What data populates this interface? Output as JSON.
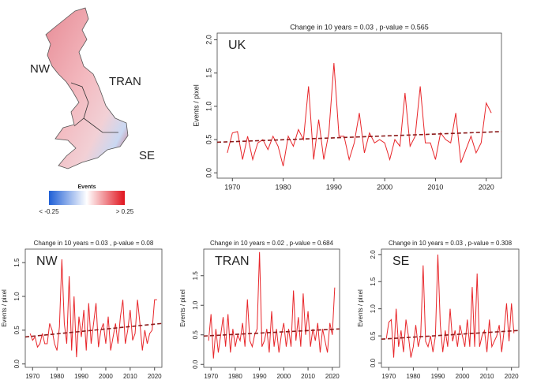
{
  "map": {
    "regions": [
      "NW",
      "TRAN",
      "SE"
    ],
    "legend_title": "Events",
    "legend_min": "< -0.25",
    "legend_max": "> 0.25"
  },
  "chart_data": [
    {
      "type": "line",
      "title": "Change in 10 years = 0.03 , p-value = 0.565",
      "label": "UK",
      "y_label": "Events / pixel",
      "x": [
        1969,
        1970,
        1971,
        1972,
        1973,
        1974,
        1975,
        1976,
        1977,
        1978,
        1979,
        1980,
        1981,
        1982,
        1983,
        1984,
        1985,
        1986,
        1987,
        1988,
        1989,
        1990,
        1991,
        1992,
        1993,
        1994,
        1995,
        1996,
        1997,
        1998,
        1999,
        2000,
        2001,
        2002,
        2003,
        2004,
        2005,
        2006,
        2007,
        2008,
        2009,
        2010,
        2011,
        2012,
        2013,
        2014,
        2015,
        2016,
        2017,
        2018,
        2019,
        2020,
        2021
      ],
      "values": [
        0.3,
        0.6,
        0.62,
        0.2,
        0.55,
        0.2,
        0.45,
        0.5,
        0.35,
        0.55,
        0.4,
        0.1,
        0.55,
        0.4,
        0.65,
        0.5,
        1.3,
        0.2,
        0.8,
        0.2,
        0.6,
        1.65,
        0.55,
        0.55,
        0.2,
        0.45,
        0.9,
        0.3,
        0.6,
        0.45,
        0.5,
        0.45,
        0.2,
        0.5,
        0.4,
        1.2,
        0.4,
        0.55,
        1.3,
        0.45,
        0.45,
        0.2,
        0.6,
        0.5,
        0.45,
        0.9,
        0.15,
        0.35,
        0.55,
        0.3,
        0.45,
        1.05,
        0.9
      ],
      "color": "#e8262a",
      "trend": {
        "x": [
          1967,
          2023
        ],
        "values": [
          0.46,
          0.62
        ],
        "color": "#8b1a1a"
      },
      "xlim": [
        1967,
        2023
      ],
      "xticks": [
        1970,
        1980,
        1990,
        2000,
        2010,
        2020
      ],
      "ylim": [
        -0.08,
        2.1
      ],
      "yticks": [
        {
          "value": 0,
          "label": "0.0"
        },
        0.5,
        {
          "value": 1,
          "label": "1.0"
        },
        1.5,
        {
          "value": 2,
          "label": "2.0"
        }
      ]
    },
    {
      "type": "line",
      "title": "Change in 10 years = 0.03 , p-value = 0.08",
      "label": "NW",
      "y_label": "Events / pixel",
      "x": [
        1969,
        1970,
        1971,
        1972,
        1973,
        1974,
        1975,
        1976,
        1977,
        1978,
        1979,
        1980,
        1981,
        1982,
        1983,
        1984,
        1985,
        1986,
        1987,
        1988,
        1989,
        1990,
        1991,
        1992,
        1993,
        1994,
        1995,
        1996,
        1997,
        1998,
        1999,
        2000,
        2001,
        2002,
        2003,
        2004,
        2005,
        2006,
        2007,
        2008,
        2009,
        2010,
        2011,
        2012,
        2013,
        2014,
        2015,
        2016,
        2017,
        2018,
        2019,
        2020,
        2021
      ],
      "values": [
        0.45,
        0.35,
        0.4,
        0.25,
        0.3,
        0.45,
        0.3,
        0.3,
        0.6,
        0.5,
        0.3,
        0.2,
        0.55,
        1.55,
        0.6,
        0.3,
        1.3,
        0.2,
        1.0,
        0.1,
        0.7,
        0.4,
        0.8,
        0.2,
        0.9,
        0.3,
        0.6,
        0.9,
        0.25,
        0.5,
        0.6,
        0.3,
        0.7,
        0.2,
        0.4,
        0.6,
        0.3,
        0.7,
        0.95,
        0.3,
        0.5,
        0.8,
        0.35,
        0.45,
        0.95,
        0.6,
        0.2,
        0.5,
        0.3,
        0.45,
        0.5,
        0.95,
        0.95
      ],
      "color": "#e8262a",
      "trend": {
        "x": [
          1967,
          2023
        ],
        "values": [
          0.4,
          0.6
        ],
        "color": "#8b1a1a"
      },
      "xlim": [
        1967,
        2023
      ],
      "xticks": [
        1970,
        1980,
        1990,
        2000,
        2010,
        2020
      ],
      "ylim": [
        -0.05,
        1.7
      ],
      "yticks": [
        {
          "value": 0,
          "label": "0.0"
        },
        0.5,
        {
          "value": 1,
          "label": "1.0"
        },
        1.5
      ]
    },
    {
      "type": "line",
      "title": "Change in 10 years = 0.02 , p-value = 0.684",
      "label": "TRAN",
      "y_label": "Events / pixel",
      "x": [
        1969,
        1970,
        1971,
        1972,
        1973,
        1974,
        1975,
        1976,
        1977,
        1978,
        1979,
        1980,
        1981,
        1982,
        1983,
        1984,
        1985,
        1986,
        1987,
        1988,
        1989,
        1990,
        1991,
        1992,
        1993,
        1994,
        1995,
        1996,
        1997,
        1998,
        1999,
        2000,
        2001,
        2002,
        2003,
        2004,
        2005,
        2006,
        2007,
        2008,
        2009,
        2010,
        2011,
        2012,
        2013,
        2014,
        2015,
        2016,
        2017,
        2018,
        2019,
        2020,
        2021
      ],
      "values": [
        0.4,
        0.85,
        0.1,
        0.6,
        0.2,
        0.5,
        0.8,
        0.3,
        0.85,
        0.2,
        0.6,
        0.3,
        0.5,
        0.4,
        0.7,
        0.3,
        1.1,
        0.4,
        0.3,
        0.5,
        0.6,
        1.9,
        0.3,
        0.4,
        0.6,
        0.2,
        0.9,
        0.3,
        0.6,
        0.2,
        0.5,
        0.7,
        0.3,
        0.6,
        0.3,
        1.25,
        0.4,
        0.8,
        0.3,
        1.2,
        0.5,
        0.9,
        0.3,
        0.6,
        0.4,
        0.7,
        0.2,
        0.6,
        0.4,
        0.2,
        0.7,
        0.5,
        1.3
      ],
      "color": "#e8262a",
      "trend": {
        "x": [
          1967,
          2023
        ],
        "values": [
          0.48,
          0.6
        ],
        "color": "#8b1a1a"
      },
      "xlim": [
        1967,
        2023
      ],
      "xticks": [
        1970,
        1980,
        1990,
        2000,
        2010,
        2020
      ],
      "ylim": [
        -0.05,
        1.95
      ],
      "yticks": [
        {
          "value": 0,
          "label": "0.0"
        },
        0.5,
        {
          "value": 1,
          "label": "1.0"
        },
        1.5
      ]
    },
    {
      "type": "line",
      "title": "Change in 10 years = 0.03 , p-value = 0.308",
      "label": "SE",
      "y_label": "Events / pixel",
      "x": [
        1969,
        1970,
        1971,
        1972,
        1973,
        1974,
        1975,
        1976,
        1977,
        1978,
        1979,
        1980,
        1981,
        1982,
        1983,
        1984,
        1985,
        1986,
        1987,
        1988,
        1989,
        1990,
        1991,
        1992,
        1993,
        1994,
        1995,
        1996,
        1997,
        1998,
        1999,
        2000,
        2001,
        2002,
        2003,
        2004,
        2005,
        2006,
        2007,
        2008,
        2009,
        2010,
        2011,
        2012,
        2013,
        2014,
        2015,
        2016,
        2017,
        2018,
        2019,
        2020,
        2021
      ],
      "values": [
        0.45,
        0.75,
        0.8,
        0.1,
        1.0,
        0.3,
        0.6,
        0.2,
        0.8,
        0.5,
        0.1,
        0.3,
        0.7,
        0.3,
        0.5,
        1.8,
        0.4,
        0.3,
        0.5,
        0.2,
        0.5,
        2.0,
        0.7,
        0.2,
        0.6,
        0.3,
        1.0,
        0.4,
        0.6,
        0.3,
        0.7,
        0.5,
        0.3,
        0.8,
        0.3,
        1.4,
        0.3,
        1.65,
        0.3,
        0.5,
        0.6,
        0.2,
        0.8,
        0.3,
        0.4,
        0.5,
        0.7,
        0.2,
        0.6,
        1.1,
        0.4,
        1.1,
        0.55
      ],
      "color": "#e8262a",
      "trend": {
        "x": [
          1967,
          2023
        ],
        "values": [
          0.44,
          0.6
        ],
        "color": "#8b1a1a"
      },
      "xlim": [
        1967,
        2023
      ],
      "xticks": [
        1970,
        1980,
        1990,
        2000,
        2010,
        2020
      ],
      "ylim": [
        -0.08,
        2.1
      ],
      "yticks": [
        {
          "value": 0,
          "label": "0.0"
        },
        0.5,
        {
          "value": 1,
          "label": "1.0"
        },
        1.5,
        {
          "value": 2,
          "label": "2.0"
        }
      ]
    }
  ]
}
